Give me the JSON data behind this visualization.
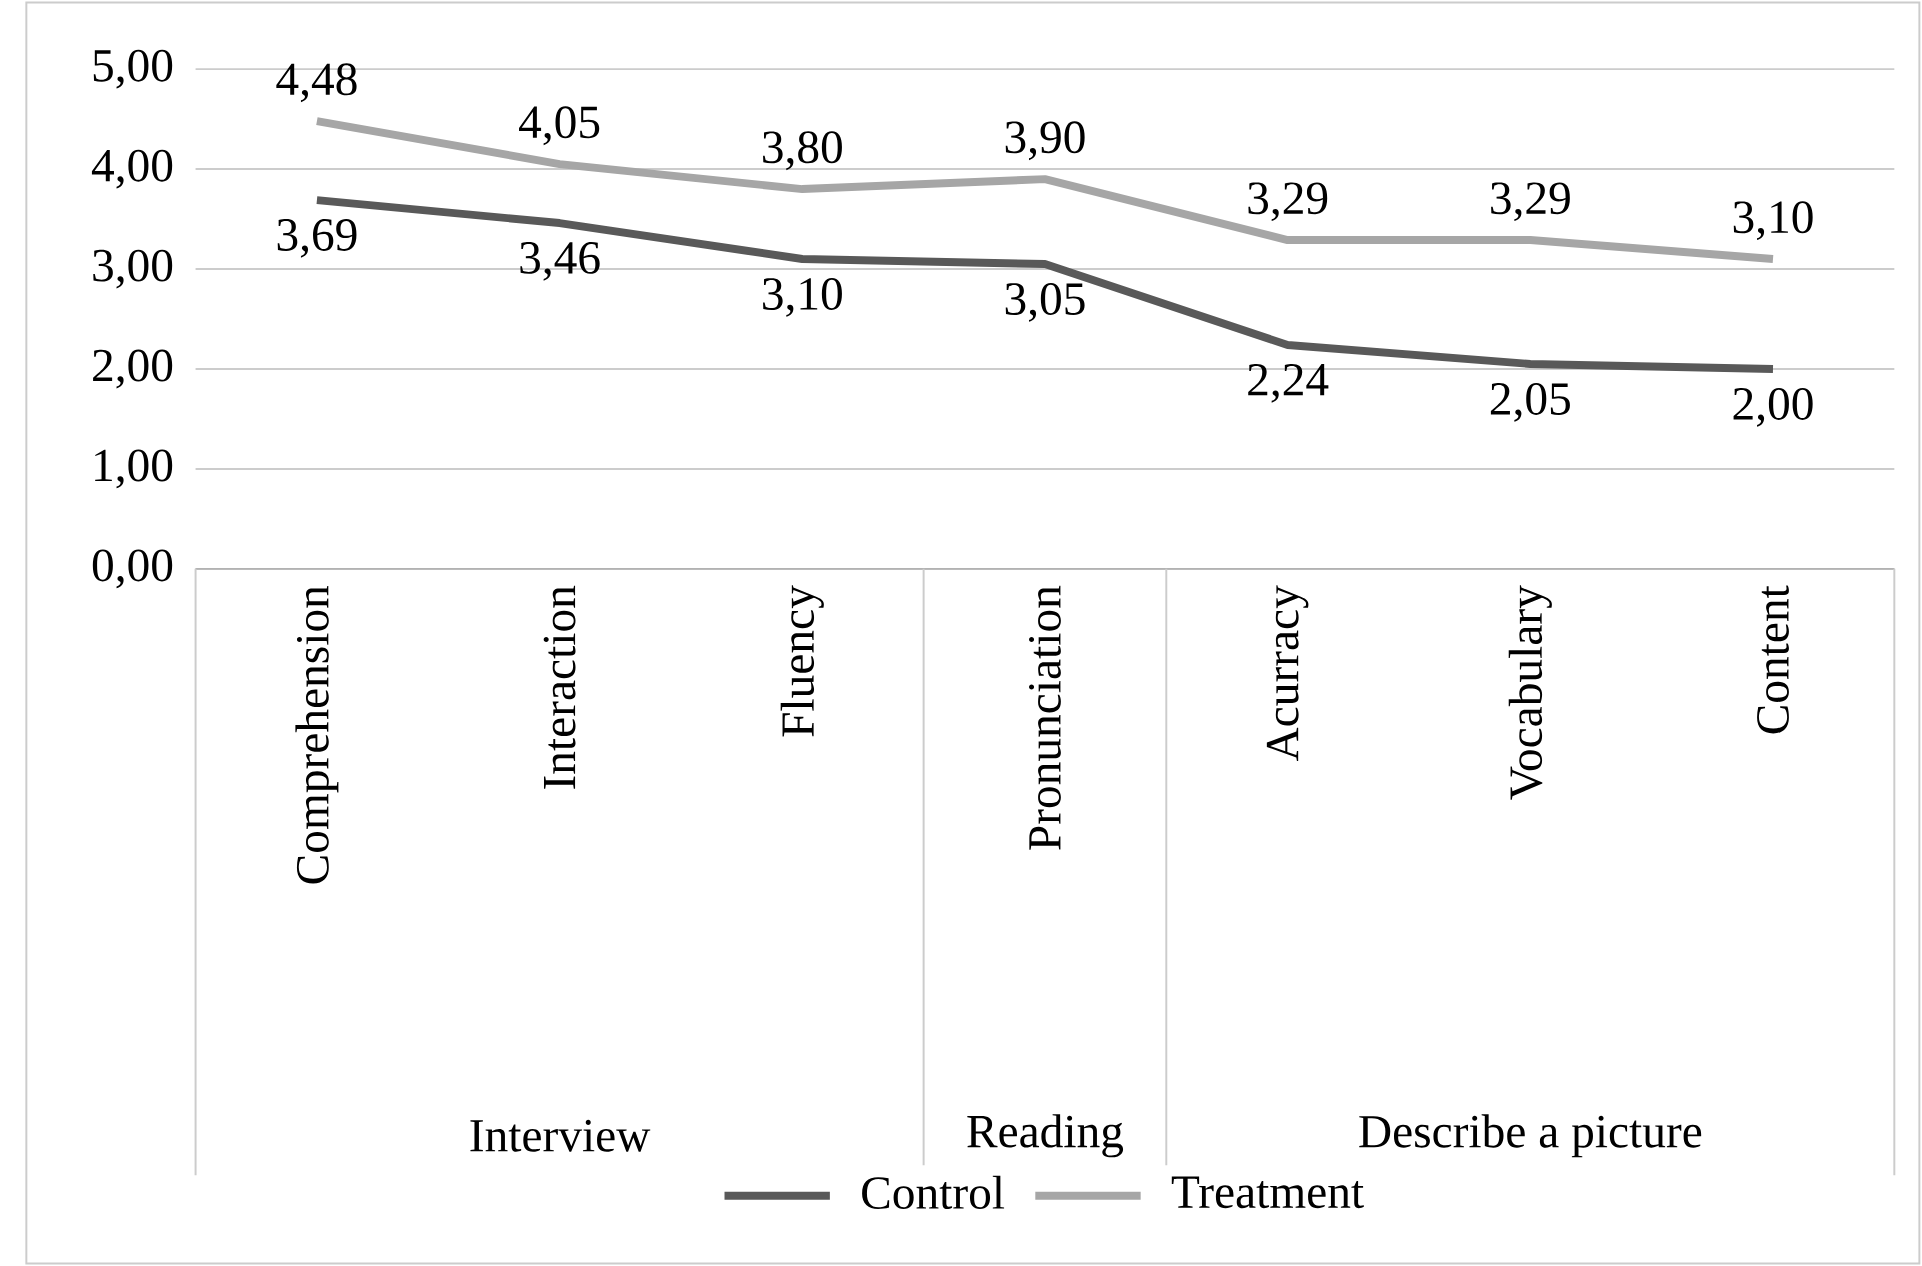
{
  "chart_data": {
    "type": "line",
    "categories": [
      "Comprehension",
      "Interaction",
      "Fluency",
      "Pronunciation",
      "Acurracy",
      "Vocabulary",
      "Content"
    ],
    "series": [
      {
        "name": "Control",
        "color": "#595959",
        "values": [
          3.69,
          3.46,
          3.1,
          3.05,
          2.24,
          2.05,
          2.0
        ],
        "value_labels": [
          "3,69",
          "3,46",
          "3,10",
          "3,05",
          "2,24",
          "2,05",
          "2,00"
        ]
      },
      {
        "name": "Treatment",
        "color": "#a6a6a6",
        "values": [
          4.48,
          4.05,
          3.8,
          3.9,
          3.29,
          3.29,
          3.1
        ],
        "value_labels": [
          "4,48",
          "4,05",
          "3,80",
          "3,90",
          "3,29",
          "3,29",
          "3,10"
        ]
      }
    ],
    "ylim": [
      0,
      5
    ],
    "yticks": [
      {
        "value": 0,
        "label": "0,00"
      },
      {
        "value": 1,
        "label": "1,00"
      },
      {
        "value": 2,
        "label": "2,00"
      },
      {
        "value": 3,
        "label": "3,00"
      },
      {
        "value": 4,
        "label": "4,00"
      },
      {
        "value": 5,
        "label": "5,00"
      }
    ],
    "annotations": [
      "Interview",
      "Reading",
      "Describe a picture"
    ],
    "grid": "y",
    "legend": "bottom",
    "marker": "none",
    "line_style": "solid"
  }
}
